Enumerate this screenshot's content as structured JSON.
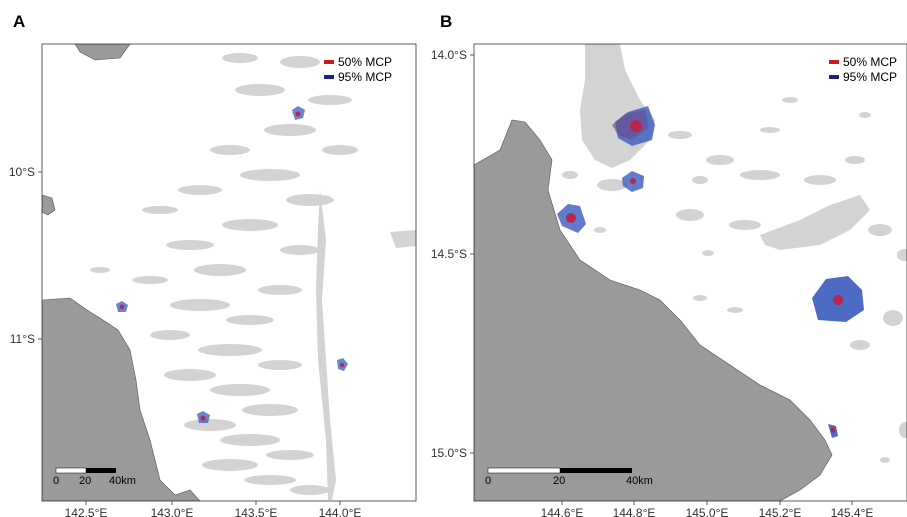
{
  "panels": [
    {
      "letter": "A",
      "legend": [
        {
          "label": "50% MCP",
          "color": "#cc1a1a"
        },
        {
          "label": "95% MCP",
          "color": "#1a237e"
        }
      ],
      "y_ticks": [
        "10°S",
        "11°S"
      ],
      "x_ticks": [
        "142.5°E",
        "143.0°E",
        "143.5°E",
        "144.0°E"
      ],
      "scale_labels": [
        "0",
        "20",
        "40km"
      ]
    },
    {
      "letter": "B",
      "legend": [
        {
          "label": "50% MCP",
          "color": "#cc1a1a"
        },
        {
          "label": "95% MCP",
          "color": "#1a237e"
        }
      ],
      "y_ticks": [
        "14.0°S",
        "14.5°S",
        "15.0°S"
      ],
      "x_ticks": [
        "144.6°E",
        "144.8°E",
        "145.0°E",
        "145.2°E",
        "145.4°E"
      ],
      "scale_labels": [
        "0",
        "20",
        "40km"
      ]
    }
  ],
  "colors": {
    "land": "#9a9a9a",
    "reef": "#d3d3d3",
    "mcp95": "#3a5bbf",
    "mcp50": "#b8264a"
  }
}
